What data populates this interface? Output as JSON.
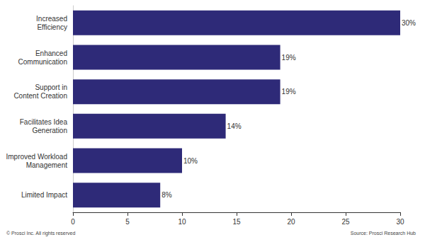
{
  "chart_data": {
    "type": "bar",
    "orientation": "horizontal",
    "categories": [
      "Increased\nEfficiency",
      "Enhanced\nCommunication",
      "Support in\nContent Creation",
      "Facilitates Idea\nGeneration",
      "Improved Workload\nManagement",
      "Limited Impact"
    ],
    "values": [
      30,
      19,
      19,
      14,
      10,
      8
    ],
    "value_labels": [
      "30%",
      "19%",
      "19%",
      "14%",
      "10%",
      "8%"
    ],
    "data_labels": true,
    "color": "#2e2a78",
    "xlim": [
      0,
      30
    ],
    "xticks": [
      0,
      5,
      10,
      15,
      20,
      25,
      30
    ],
    "grid": false,
    "annotations": [
      "© Prosci Inc. All rights reserved",
      "Source: Prosci Research Hub"
    ]
  }
}
